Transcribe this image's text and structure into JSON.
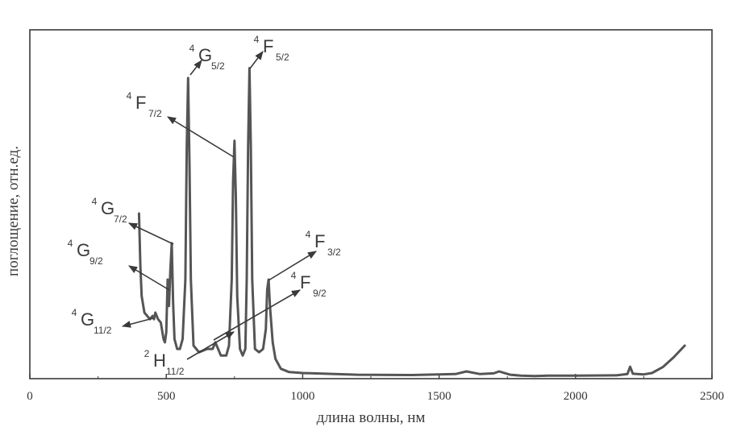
{
  "chart_data": {
    "type": "line",
    "xlabel": "длина волны, нм",
    "ylabel": "поглощение, отн.ед.",
    "xlim": [
      0,
      2500
    ],
    "ylim": [
      0,
      1
    ],
    "x_ticks": [
      "0",
      "500",
      "1000",
      "1500",
      "2000",
      "2500"
    ],
    "y_ticks": [],
    "grid": false,
    "series": [
      {
        "points": [
          [
            400,
            0.5
          ],
          [
            405,
            0.34
          ],
          [
            410,
            0.25
          ],
          [
            420,
            0.2
          ],
          [
            430,
            0.19
          ],
          [
            440,
            0.18
          ],
          [
            450,
            0.19
          ],
          [
            455,
            0.18
          ],
          [
            460,
            0.2
          ],
          [
            470,
            0.18
          ],
          [
            480,
            0.17
          ],
          [
            490,
            0.12
          ],
          [
            495,
            0.11
          ],
          [
            500,
            0.14
          ],
          [
            505,
            0.3
          ],
          [
            510,
            0.22
          ],
          [
            515,
            0.33
          ],
          [
            520,
            0.41
          ],
          [
            525,
            0.23
          ],
          [
            530,
            0.12
          ],
          [
            540,
            0.09
          ],
          [
            550,
            0.09
          ],
          [
            560,
            0.12
          ],
          [
            570,
            0.3
          ],
          [
            575,
            0.7
          ],
          [
            580,
            0.91
          ],
          [
            585,
            0.65
          ],
          [
            590,
            0.3
          ],
          [
            600,
            0.1
          ],
          [
            620,
            0.08
          ],
          [
            650,
            0.09
          ],
          [
            670,
            0.09
          ],
          [
            680,
            0.11
          ],
          [
            690,
            0.09
          ],
          [
            700,
            0.07
          ],
          [
            720,
            0.07
          ],
          [
            730,
            0.1
          ],
          [
            740,
            0.3
          ],
          [
            745,
            0.6
          ],
          [
            750,
            0.72
          ],
          [
            755,
            0.55
          ],
          [
            760,
            0.25
          ],
          [
            770,
            0.09
          ],
          [
            780,
            0.07
          ],
          [
            790,
            0.09
          ],
          [
            795,
            0.3
          ],
          [
            800,
            0.7
          ],
          [
            805,
            0.94
          ],
          [
            810,
            0.7
          ],
          [
            815,
            0.3
          ],
          [
            825,
            0.09
          ],
          [
            840,
            0.08
          ],
          [
            855,
            0.09
          ],
          [
            865,
            0.15
          ],
          [
            870,
            0.27
          ],
          [
            875,
            0.3
          ],
          [
            880,
            0.22
          ],
          [
            890,
            0.11
          ],
          [
            900,
            0.06
          ],
          [
            920,
            0.03
          ],
          [
            950,
            0.02
          ],
          [
            1000,
            0.017
          ],
          [
            1200,
            0.012
          ],
          [
            1400,
            0.011
          ],
          [
            1560,
            0.014
          ],
          [
            1600,
            0.022
          ],
          [
            1650,
            0.014
          ],
          [
            1700,
            0.016
          ],
          [
            1720,
            0.022
          ],
          [
            1760,
            0.012
          ],
          [
            1800,
            0.009
          ],
          [
            1850,
            0.008
          ],
          [
            1900,
            0.009
          ],
          [
            2000,
            0.009
          ],
          [
            2150,
            0.01
          ],
          [
            2190,
            0.014
          ],
          [
            2200,
            0.036
          ],
          [
            2210,
            0.015
          ],
          [
            2250,
            0.013
          ],
          [
            2280,
            0.017
          ],
          [
            2320,
            0.035
          ],
          [
            2360,
            0.065
          ],
          [
            2400,
            0.1
          ]
        ]
      }
    ],
    "annotations": [
      {
        "main": "G",
        "sup": "4",
        "sub": "5/2"
      },
      {
        "main": "F",
        "sup": "4",
        "sub": "5/2"
      },
      {
        "main": "F",
        "sup": "4",
        "sub": "7/2"
      },
      {
        "main": "G",
        "sup": "4",
        "sub": "7/2"
      },
      {
        "main": "G",
        "sup": "4",
        "sub": "9/2"
      },
      {
        "main": "G",
        "sup": "4",
        "sub": "11/2"
      },
      {
        "main": "F",
        "sup": "4",
        "sub": "3/2"
      },
      {
        "main": "F",
        "sup": "4",
        "sub": "9/2"
      },
      {
        "main": "H",
        "sup": "2",
        "sub": "11/2"
      }
    ]
  }
}
